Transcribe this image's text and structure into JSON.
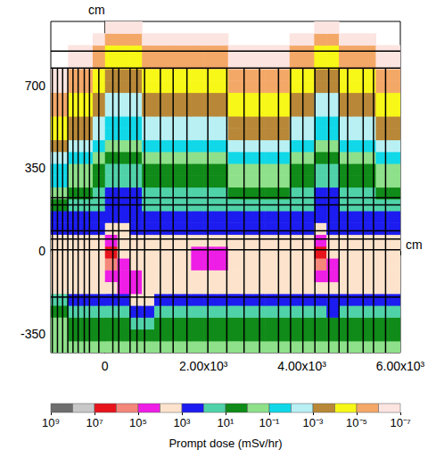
{
  "chart_data": {
    "type": "heatmap",
    "x_label": "cm",
    "y_label": "cm",
    "xlim": [
      -1100,
      6000
    ],
    "ylim": [
      -430,
      970
    ],
    "xticks": [
      0,
      {
        "value": 2000,
        "label": "2.00x10³"
      },
      {
        "value": 4000,
        "label": "4.00x10³"
      },
      {
        "value": 6000,
        "label": "6.00x10³"
      }
    ],
    "yticks": [
      -350,
      0,
      350,
      700
    ],
    "x_edges": [
      -1100,
      -750,
      -500,
      -250,
      0,
      250,
      500,
      750,
      1000,
      1250,
      1500,
      1750,
      2000,
      2250,
      2500,
      2750,
      3000,
      3250,
      3500,
      3750,
      4000,
      4250,
      4500,
      4750,
      5000,
      5250,
      5500,
      5750,
      6000
    ],
    "y_edges": [
      -430,
      -380,
      -330,
      -280,
      -230,
      -180,
      -130,
      -80,
      -30,
      20,
      70,
      120,
      170,
      220,
      270,
      320,
      370,
      420,
      470,
      520,
      570,
      620,
      670,
      720,
      770,
      820,
      870,
      920,
      970
    ],
    "z": [
      [
        0.3,
        0.3,
        0.3,
        0.3,
        0.3,
        0.3,
        0.3,
        0.3,
        0.3,
        0.3,
        0.3,
        0.3,
        0.3,
        0.3,
        0.3,
        0.3,
        0.3,
        0.3,
        0.3,
        0.3,
        0.3,
        0.3,
        0.3,
        0.3,
        0.3,
        0.3,
        0.3,
        0.3
      ],
      [
        0.3,
        3.0,
        3.0,
        3.0,
        3.0,
        3.0,
        3.0,
        3.0,
        3.0,
        3.0,
        3.0,
        3.0,
        3.0,
        3.0,
        3.0,
        3.0,
        3.0,
        3.0,
        3.0,
        3.0,
        3.0,
        3.0,
        3.0,
        3.0,
        3.0,
        3.0,
        3.0,
        3.0
      ],
      [
        0.3,
        3.0,
        3.0,
        3.0,
        3.0,
        3.0,
        30.0,
        30.0,
        3.0,
        3.0,
        3.0,
        3.0,
        3.0,
        3.0,
        3.0,
        3.0,
        3.0,
        3.0,
        3.0,
        3.0,
        3.0,
        3.0,
        3.0,
        3.0,
        3.0,
        3.0,
        3.0,
        3.0
      ],
      [
        3.0,
        30.0,
        30.0,
        30.0,
        30.0,
        30.0,
        300.0,
        300.0,
        30.0,
        30.0,
        30.0,
        30.0,
        30.0,
        30.0,
        30.0,
        30.0,
        30.0,
        30.0,
        30.0,
        30.0,
        30.0,
        30.0,
        300.0,
        30.0,
        30.0,
        30.0,
        30.0,
        30.0
      ],
      [
        30.0,
        300.0,
        300.0,
        300.0,
        300.0,
        300.0,
        3000.0,
        3000.0,
        300.0,
        300.0,
        300.0,
        300.0,
        300.0,
        300.0,
        300.0,
        300.0,
        300.0,
        300.0,
        300.0,
        300.0,
        300.0,
        300.0,
        300.0,
        300.0,
        300.0,
        300.0,
        300.0,
        300.0
      ],
      [
        3000.0,
        3000.0,
        3000.0,
        3000.0,
        3000.0,
        30000.0,
        30000.0,
        3000.0,
        3000.0,
        3000.0,
        3000.0,
        3000.0,
        3000.0,
        3000.0,
        3000.0,
        3000.0,
        3000.0,
        3000.0,
        3000.0,
        3000.0,
        3000.0,
        3000.0,
        3000.0,
        3000.0,
        3000.0,
        3000.0,
        3000.0,
        3000.0
      ],
      [
        3000.0,
        3000.0,
        3000.0,
        3000.0,
        30000.0,
        30000.0,
        30000.0,
        3000.0,
        3000.0,
        3000.0,
        3000.0,
        3000.0,
        3000.0,
        3000.0,
        3000.0,
        3000.0,
        3000.0,
        3000.0,
        3000.0,
        3000.0,
        3000.0,
        30000.0,
        30000.0,
        3000.0,
        3000.0,
        3000.0,
        3000.0,
        3000.0
      ],
      [
        3000.0,
        3000.0,
        3000.0,
        3000.0,
        300000.0,
        30000.0,
        3000.0,
        3000.0,
        3000.0,
        3000.0,
        3000.0,
        30000.0,
        30000.0,
        30000.0,
        3000.0,
        3000.0,
        3000.0,
        3000.0,
        3000.0,
        3000.0,
        3000.0,
        300000.0,
        30000.0,
        3000.0,
        3000.0,
        3000.0,
        3000.0,
        3000.0
      ],
      [
        3000.0,
        3000.0,
        3000.0,
        3000.0,
        3000000.0,
        3000.0,
        3000.0,
        3000.0,
        3000.0,
        3000.0,
        3000.0,
        30000.0,
        30000.0,
        30000.0,
        3000.0,
        3000.0,
        3000.0,
        3000.0,
        3000.0,
        3000.0,
        3000.0,
        3000000.0,
        3000.0,
        3000.0,
        3000.0,
        3000.0,
        3000.0,
        3000.0
      ],
      [
        3000.0,
        3000.0,
        3000.0,
        3000.0,
        30000.0,
        3000.0,
        3000.0,
        3000.0,
        3000.0,
        3000.0,
        3000.0,
        3000.0,
        3000.0,
        3000.0,
        3000.0,
        3000.0,
        3000.0,
        3000.0,
        3000.0,
        3000.0,
        3000.0,
        30000.0,
        3000.0,
        3000.0,
        3000.0,
        3000.0,
        3000.0,
        3000.0
      ],
      [
        300.0,
        300.0,
        300.0,
        300.0,
        3000.0,
        3000.0,
        300.0,
        300.0,
        300.0,
        300.0,
        300.0,
        300.0,
        300.0,
        300.0,
        300.0,
        300.0,
        300.0,
        300.0,
        300.0,
        300.0,
        300.0,
        3000.0,
        300.0,
        300.0,
        300.0,
        300.0,
        300.0,
        300.0
      ],
      [
        300.0,
        300.0,
        300.0,
        300.0,
        300.0,
        300.0,
        300.0,
        300.0,
        300.0,
        300.0,
        300.0,
        300.0,
        300.0,
        300.0,
        300.0,
        300.0,
        300.0,
        300.0,
        300.0,
        300.0,
        300.0,
        300.0,
        300.0,
        300.0,
        300.0,
        300.0,
        300.0,
        300.0
      ],
      [
        3.0,
        30.0,
        30.0,
        30.0,
        300.0,
        300.0,
        300.0,
        30.0,
        30.0,
        30.0,
        30.0,
        30.0,
        30.0,
        30.0,
        30.0,
        30.0,
        30.0,
        30.0,
        30.0,
        30.0,
        30.0,
        300.0,
        300.0,
        30.0,
        30.0,
        30.0,
        30.0,
        30.0
      ],
      [
        0.3,
        3.0,
        3.0,
        30.0,
        300.0,
        300.0,
        300.0,
        30.0,
        30.0,
        30.0,
        30.0,
        30.0,
        30.0,
        30.0,
        3.0,
        3.0,
        3.0,
        3.0,
        3.0,
        30.0,
        30.0,
        300.0,
        300.0,
        30.0,
        30.0,
        30.0,
        3.0,
        3.0
      ],
      [
        0.03,
        0.3,
        0.3,
        3.0,
        30.0,
        30.0,
        30.0,
        3.0,
        3.0,
        3.0,
        3.0,
        3.0,
        3.0,
        3.0,
        0.3,
        0.3,
        0.3,
        0.3,
        0.3,
        3.0,
        3.0,
        30.0,
        30.0,
        3.0,
        3.0,
        3.0,
        0.3,
        0.3
      ],
      [
        0.03,
        0.3,
        0.3,
        3.0,
        30.0,
        30.0,
        30.0,
        3.0,
        3.0,
        3.0,
        3.0,
        3.0,
        3.0,
        3.0,
        0.3,
        0.3,
        0.3,
        0.3,
        0.3,
        3.0,
        3.0,
        30.0,
        30.0,
        3.0,
        3.0,
        3.0,
        0.3,
        0.3
      ],
      [
        0.003,
        0.03,
        0.03,
        0.3,
        3.0,
        3.0,
        3.0,
        0.3,
        0.3,
        0.3,
        0.3,
        0.3,
        0.3,
        0.3,
        0.03,
        0.03,
        0.03,
        0.03,
        0.03,
        0.3,
        0.3,
        3.0,
        3.0,
        0.3,
        0.3,
        0.3,
        0.03,
        0.03
      ],
      [
        0.0003,
        0.003,
        0.003,
        0.03,
        0.3,
        0.3,
        0.3,
        0.03,
        0.03,
        0.03,
        0.03,
        0.03,
        0.03,
        0.03,
        0.003,
        0.003,
        0.003,
        0.003,
        0.003,
        0.03,
        0.03,
        0.3,
        0.3,
        0.03,
        0.03,
        0.03,
        0.003,
        0.003
      ],
      [
        3e-05,
        0.0003,
        0.0003,
        0.003,
        0.03,
        0.03,
        0.03,
        0.003,
        0.003,
        0.003,
        0.003,
        0.003,
        0.003,
        0.003,
        0.0003,
        0.0003,
        0.0003,
        0.0003,
        0.0003,
        0.003,
        0.003,
        0.03,
        0.03,
        0.003,
        0.003,
        0.003,
        0.0003,
        0.0003
      ],
      [
        3e-05,
        0.0003,
        0.0003,
        0.003,
        0.03,
        0.03,
        0.03,
        0.003,
        0.003,
        0.003,
        0.003,
        0.003,
        0.003,
        0.003,
        0.0003,
        0.0003,
        0.0003,
        0.0003,
        0.0003,
        0.003,
        0.003,
        0.03,
        0.03,
        0.003,
        0.003,
        0.003,
        0.0003,
        0.0003
      ],
      [
        3e-06,
        3e-05,
        3e-05,
        0.0003,
        0.003,
        0.003,
        0.003,
        0.0003,
        0.0003,
        0.0003,
        0.0003,
        0.0003,
        0.0003,
        0.0003,
        3e-05,
        3e-05,
        3e-05,
        3e-05,
        3e-05,
        0.0003,
        0.0003,
        0.003,
        0.003,
        0.0003,
        0.0003,
        0.0003,
        3e-05,
        3e-05
      ],
      [
        3e-06,
        3e-05,
        3e-05,
        0.0003,
        0.003,
        0.003,
        0.003,
        0.0003,
        0.0003,
        0.0003,
        0.0003,
        0.0003,
        0.0003,
        0.0003,
        3e-05,
        3e-05,
        3e-05,
        3e-05,
        3e-05,
        0.0003,
        0.0003,
        0.003,
        0.003,
        0.0003,
        0.0003,
        0.0003,
        3e-05,
        3e-05
      ],
      [
        3e-07,
        3e-06,
        3e-06,
        3e-05,
        0.0003,
        0.0003,
        0.0003,
        3e-05,
        3e-05,
        3e-05,
        3e-05,
        3e-05,
        3e-05,
        3e-05,
        3e-06,
        3e-06,
        3e-06,
        3e-06,
        3e-06,
        3e-05,
        3e-05,
        0.0003,
        0.0003,
        3e-05,
        3e-05,
        3e-05,
        3e-06,
        3e-06
      ],
      [
        3e-07,
        3e-06,
        3e-06,
        3e-05,
        0.0003,
        0.0003,
        0.0003,
        3e-05,
        3e-05,
        3e-05,
        3e-05,
        3e-05,
        3e-05,
        3e-05,
        3e-06,
        3e-06,
        3e-06,
        3e-06,
        3e-06,
        3e-05,
        3e-05,
        0.0003,
        0.0003,
        3e-05,
        3e-05,
        3e-05,
        3e-06,
        3e-06
      ],
      [
        null,
        3e-07,
        3e-07,
        3e-06,
        3e-05,
        3e-05,
        3e-05,
        3e-06,
        3e-06,
        3e-06,
        3e-06,
        3e-06,
        3e-06,
        3e-06,
        3e-07,
        3e-07,
        3e-07,
        3e-07,
        3e-07,
        3e-06,
        3e-06,
        3e-05,
        3e-05,
        3e-06,
        3e-06,
        3e-06,
        3e-07,
        3e-07
      ],
      [
        null,
        3e-07,
        3e-07,
        3e-06,
        3e-05,
        3e-05,
        3e-05,
        3e-06,
        3e-06,
        3e-06,
        3e-06,
        3e-06,
        3e-06,
        3e-06,
        3e-07,
        3e-07,
        3e-07,
        3e-07,
        3e-07,
        3e-06,
        3e-06,
        3e-05,
        3e-05,
        3e-06,
        3e-06,
        3e-06,
        3e-07,
        3e-07
      ],
      [
        null,
        null,
        null,
        3e-07,
        3e-06,
        3e-06,
        3e-06,
        3e-07,
        3e-07,
        3e-07,
        3e-07,
        3e-07,
        3e-07,
        3e-07,
        null,
        null,
        null,
        null,
        null,
        3e-07,
        3e-07,
        3e-06,
        3e-06,
        3e-07,
        3e-07,
        3e-07,
        null,
        null
      ],
      [
        null,
        null,
        null,
        null,
        3e-07,
        3e-07,
        3e-07,
        null,
        null,
        null,
        null,
        null,
        null,
        null,
        null,
        null,
        null,
        null,
        null,
        null,
        null,
        3e-07,
        3e-07,
        null,
        null,
        null,
        null,
        null
      ]
    ],
    "geometry": {
      "vertical": [
        -1070,
        -965,
        -860,
        -755,
        -650,
        -545,
        -420,
        -315,
        -125,
        160,
        280,
        510,
        650,
        805,
        1125,
        1385,
        1665,
        2090,
        2475,
        2825,
        3140,
        3525,
        3770,
        4020,
        4265,
        4545,
        4755,
        4930,
        5245,
        5455,
        5700
      ],
      "vertical_top": 773,
      "horizontal": [
        845,
        773,
        225,
        195,
        85,
        50,
        5,
        -195
      ]
    },
    "colorbar": {
      "title": "Prompt dose (mSv/hr)",
      "range": [
        1e-07,
        1000000000.0
      ],
      "ticks": [
        {
          "value": 1000000000.0,
          "label": "10⁹"
        },
        {
          "value": 10000000.0,
          "label": "10⁷"
        },
        {
          "value": 100000.0,
          "label": "10⁵"
        },
        {
          "value": 1000.0,
          "label": "10³"
        },
        {
          "value": 10,
          "label": "10¹"
        },
        {
          "value": 0.1,
          "label": "10⁻¹"
        },
        {
          "value": 0.001,
          "label": "10⁻³"
        },
        {
          "value": 1e-05,
          "label": "10⁻⁵"
        },
        {
          "value": 1e-07,
          "label": "10⁻⁷"
        }
      ],
      "colors": [
        "#6e6e6e",
        "#c8c8c8",
        "#e8141c",
        "#f4877a",
        "#ee1ee6",
        "#fde3cc",
        "#1c1cf0",
        "#50d2a8",
        "#108a18",
        "#8ee08a",
        "#10d8e8",
        "#b8f0f4",
        "#b88838",
        "#f8f818",
        "#f4a868",
        "#fce4e0"
      ]
    }
  }
}
